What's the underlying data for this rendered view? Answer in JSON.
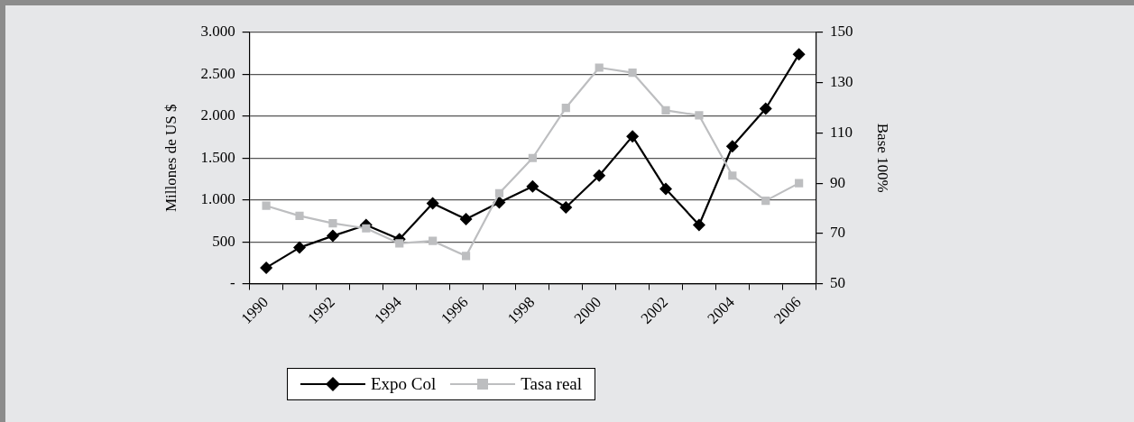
{
  "chart_data": {
    "type": "line",
    "categories": [
      "1990",
      null,
      "1992",
      null,
      "1994",
      null,
      "1996",
      null,
      "1998",
      null,
      "2000",
      null,
      "2002",
      null,
      "2004",
      null,
      "2006"
    ],
    "ylabel": "Millones de US $",
    "y2label": "Base 100%",
    "series": [
      {
        "name": "Expo Col",
        "color": "#000000",
        "marker": "diamond",
        "values": [
          190,
          430,
          570,
          700,
          530,
          960,
          770,
          970,
          1160,
          910,
          1290,
          1760,
          1130,
          700,
          1640,
          2090,
          2740
        ]
      },
      {
        "name": "Tasa real",
        "color": "#bdbec0",
        "marker": "square",
        "axis": "y2",
        "values": [
          81,
          77,
          74,
          72,
          66,
          67,
          61,
          86,
          100,
          120,
          136,
          134,
          119,
          117,
          93,
          83,
          90
        ]
      }
    ],
    "ylim": [
      0,
      3000
    ],
    "yticks": [
      {
        "value": 0,
        "label": "-"
      },
      500,
      {
        "value": 1000,
        "label": "1.000"
      },
      {
        "value": 1500,
        "label": "1.500"
      },
      {
        "value": 2000,
        "label": "2.000"
      },
      {
        "value": 2500,
        "label": "2.500"
      },
      {
        "value": 3000,
        "label": "3.000"
      }
    ],
    "y2lim": [
      50,
      150
    ],
    "y2ticks": [
      50,
      70,
      90,
      110,
      130,
      150
    ],
    "grid": "y",
    "legend": "bottom"
  }
}
